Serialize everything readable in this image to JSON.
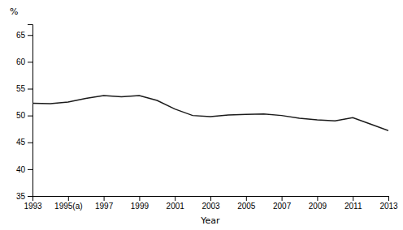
{
  "chart_data": {
    "type": "line",
    "x": [
      1993,
      1994,
      1995,
      1996,
      1997,
      1998,
      1999,
      2000,
      2001,
      2002,
      2003,
      2004,
      2005,
      2006,
      2007,
      2008,
      2009,
      2010,
      2011,
      2012,
      2013
    ],
    "values": [
      52.3,
      52.2,
      52.5,
      53.2,
      53.7,
      53.5,
      53.7,
      52.8,
      51.2,
      50.0,
      49.8,
      50.1,
      50.2,
      50.3,
      50.0,
      49.5,
      49.2,
      49.0,
      49.6,
      48.4,
      47.2
    ],
    "color": "#1a1a1a",
    "xlabel": "Year",
    "ylabel": "%",
    "xlim": [
      1993,
      2013
    ],
    "xticks": [
      1993,
      {
        "value": 1995,
        "label": "1995(a)"
      },
      1997,
      1999,
      2001,
      2003,
      2005,
      2007,
      2009,
      2011,
      2013
    ],
    "ylim": [
      35,
      67
    ],
    "yticks": [
      35,
      40,
      45,
      50,
      55,
      60,
      65
    ],
    "grid": false
  }
}
